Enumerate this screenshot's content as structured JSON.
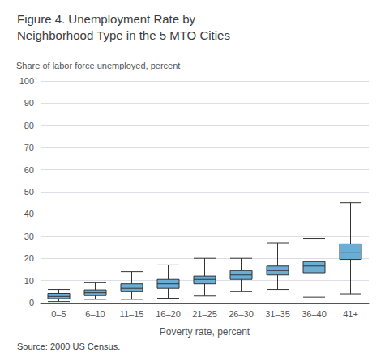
{
  "chart_data": {
    "type": "box",
    "title": [
      "Figure 4. Unemployment Rate by",
      "Neighborhood Type in the 5 MTO Cities"
    ],
    "ylabel": "Share of labor force unemployed, percent",
    "xlabel": "Poverty rate, percent",
    "source": "Source: 2000 US Census.",
    "categories": [
      "0–5",
      "6–10",
      "11–15",
      "16–20",
      "21–25",
      "26–30",
      "31–35",
      "36–40",
      "41+"
    ],
    "values": [
      {
        "whislo": 0.5,
        "q1": 1.8,
        "med": 2.8,
        "q3": 4.2,
        "whishi": 6.0
      },
      {
        "whislo": 1.5,
        "q1": 3.2,
        "med": 4.5,
        "q3": 5.8,
        "whishi": 9.0
      },
      {
        "whislo": 1.5,
        "q1": 5.0,
        "med": 6.5,
        "q3": 8.5,
        "whishi": 14.0
      },
      {
        "whislo": 2.0,
        "q1": 6.5,
        "med": 8.5,
        "q3": 10.5,
        "whishi": 17.0
      },
      {
        "whislo": 3.0,
        "q1": 8.5,
        "med": 10.5,
        "q3": 12.0,
        "whishi": 20.0
      },
      {
        "whislo": 5.0,
        "q1": 10.5,
        "med": 12.5,
        "q3": 14.5,
        "whishi": 20.0
      },
      {
        "whislo": 6.0,
        "q1": 12.5,
        "med": 14.5,
        "q3": 16.5,
        "whishi": 27.0
      },
      {
        "whislo": 2.5,
        "q1": 13.5,
        "med": 16.5,
        "q3": 18.5,
        "whishi": 29.0
      },
      {
        "whislo": 4.0,
        "q1": 19.5,
        "med": 22.5,
        "q3": 26.5,
        "whishi": 45.0
      }
    ],
    "color": "#6aaed6",
    "ylim": [
      0,
      100
    ],
    "yticks": [
      0,
      10,
      20,
      30,
      40,
      50,
      60,
      70,
      80,
      90,
      100
    ],
    "grid": true
  }
}
